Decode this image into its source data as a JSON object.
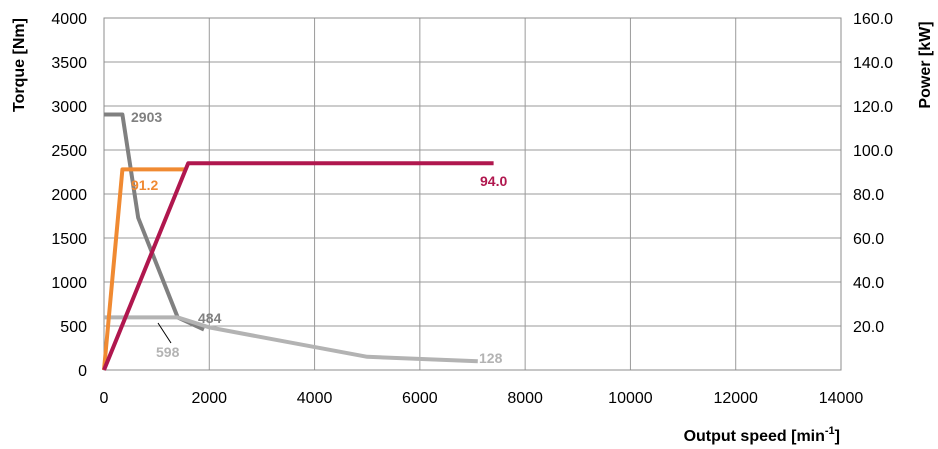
{
  "chart_data": {
    "type": "line",
    "xlabel": "Output speed [min",
    "xlabel_sup": "-1",
    "xlabel_close": "]",
    "ylabel_left": "Torque  [Nm]",
    "ylabel_right": "Power  [kW]",
    "xlim": [
      0,
      14000
    ],
    "ylim_left": [
      0,
      4000
    ],
    "ylim_right": [
      0,
      160
    ],
    "x_ticks": [
      "0",
      "2000",
      "4000",
      "6000",
      "8000",
      "10000",
      "12000",
      "14000"
    ],
    "y_left_ticks": [
      "0",
      "500",
      "1000",
      "1500",
      "2000",
      "2500",
      "3000",
      "3500",
      "4000"
    ],
    "y_right_ticks": [
      "20.0",
      "40.0",
      "60.0",
      "80.0",
      "100.0",
      "120.0",
      "140.0",
      "160.0"
    ],
    "grid": true,
    "series": [
      {
        "axis": "left",
        "color": "#808080",
        "x": [
          0,
          350,
          650,
          1400,
          1900
        ],
        "y": [
          2903,
          2903,
          1730,
          598,
          460
        ]
      },
      {
        "axis": "left",
        "color": "#b3b3b3",
        "x": [
          0,
          1400,
          2000,
          5000,
          7100
        ],
        "y": [
          598,
          598,
          484,
          150,
          100
        ]
      },
      {
        "axis": "right",
        "color": "#f08a32",
        "x": [
          0,
          350,
          1550
        ],
        "y": [
          0,
          91.2,
          91.2
        ]
      },
      {
        "axis": "right",
        "color": "#b0174e",
        "x": [
          0,
          1600,
          7400
        ],
        "y": [
          0,
          94.0,
          94.0
        ]
      }
    ],
    "annotations": [
      {
        "text": "2903",
        "color": "#808080"
      },
      {
        "text": "484",
        "color": "#808080"
      },
      {
        "text": "598",
        "color": "#b3b3b3"
      },
      {
        "text": "128",
        "color": "#b3b3b3"
      },
      {
        "text": "91.2",
        "color": "#f08a32"
      },
      {
        "text": "94.0",
        "color": "#b0174e"
      }
    ]
  }
}
